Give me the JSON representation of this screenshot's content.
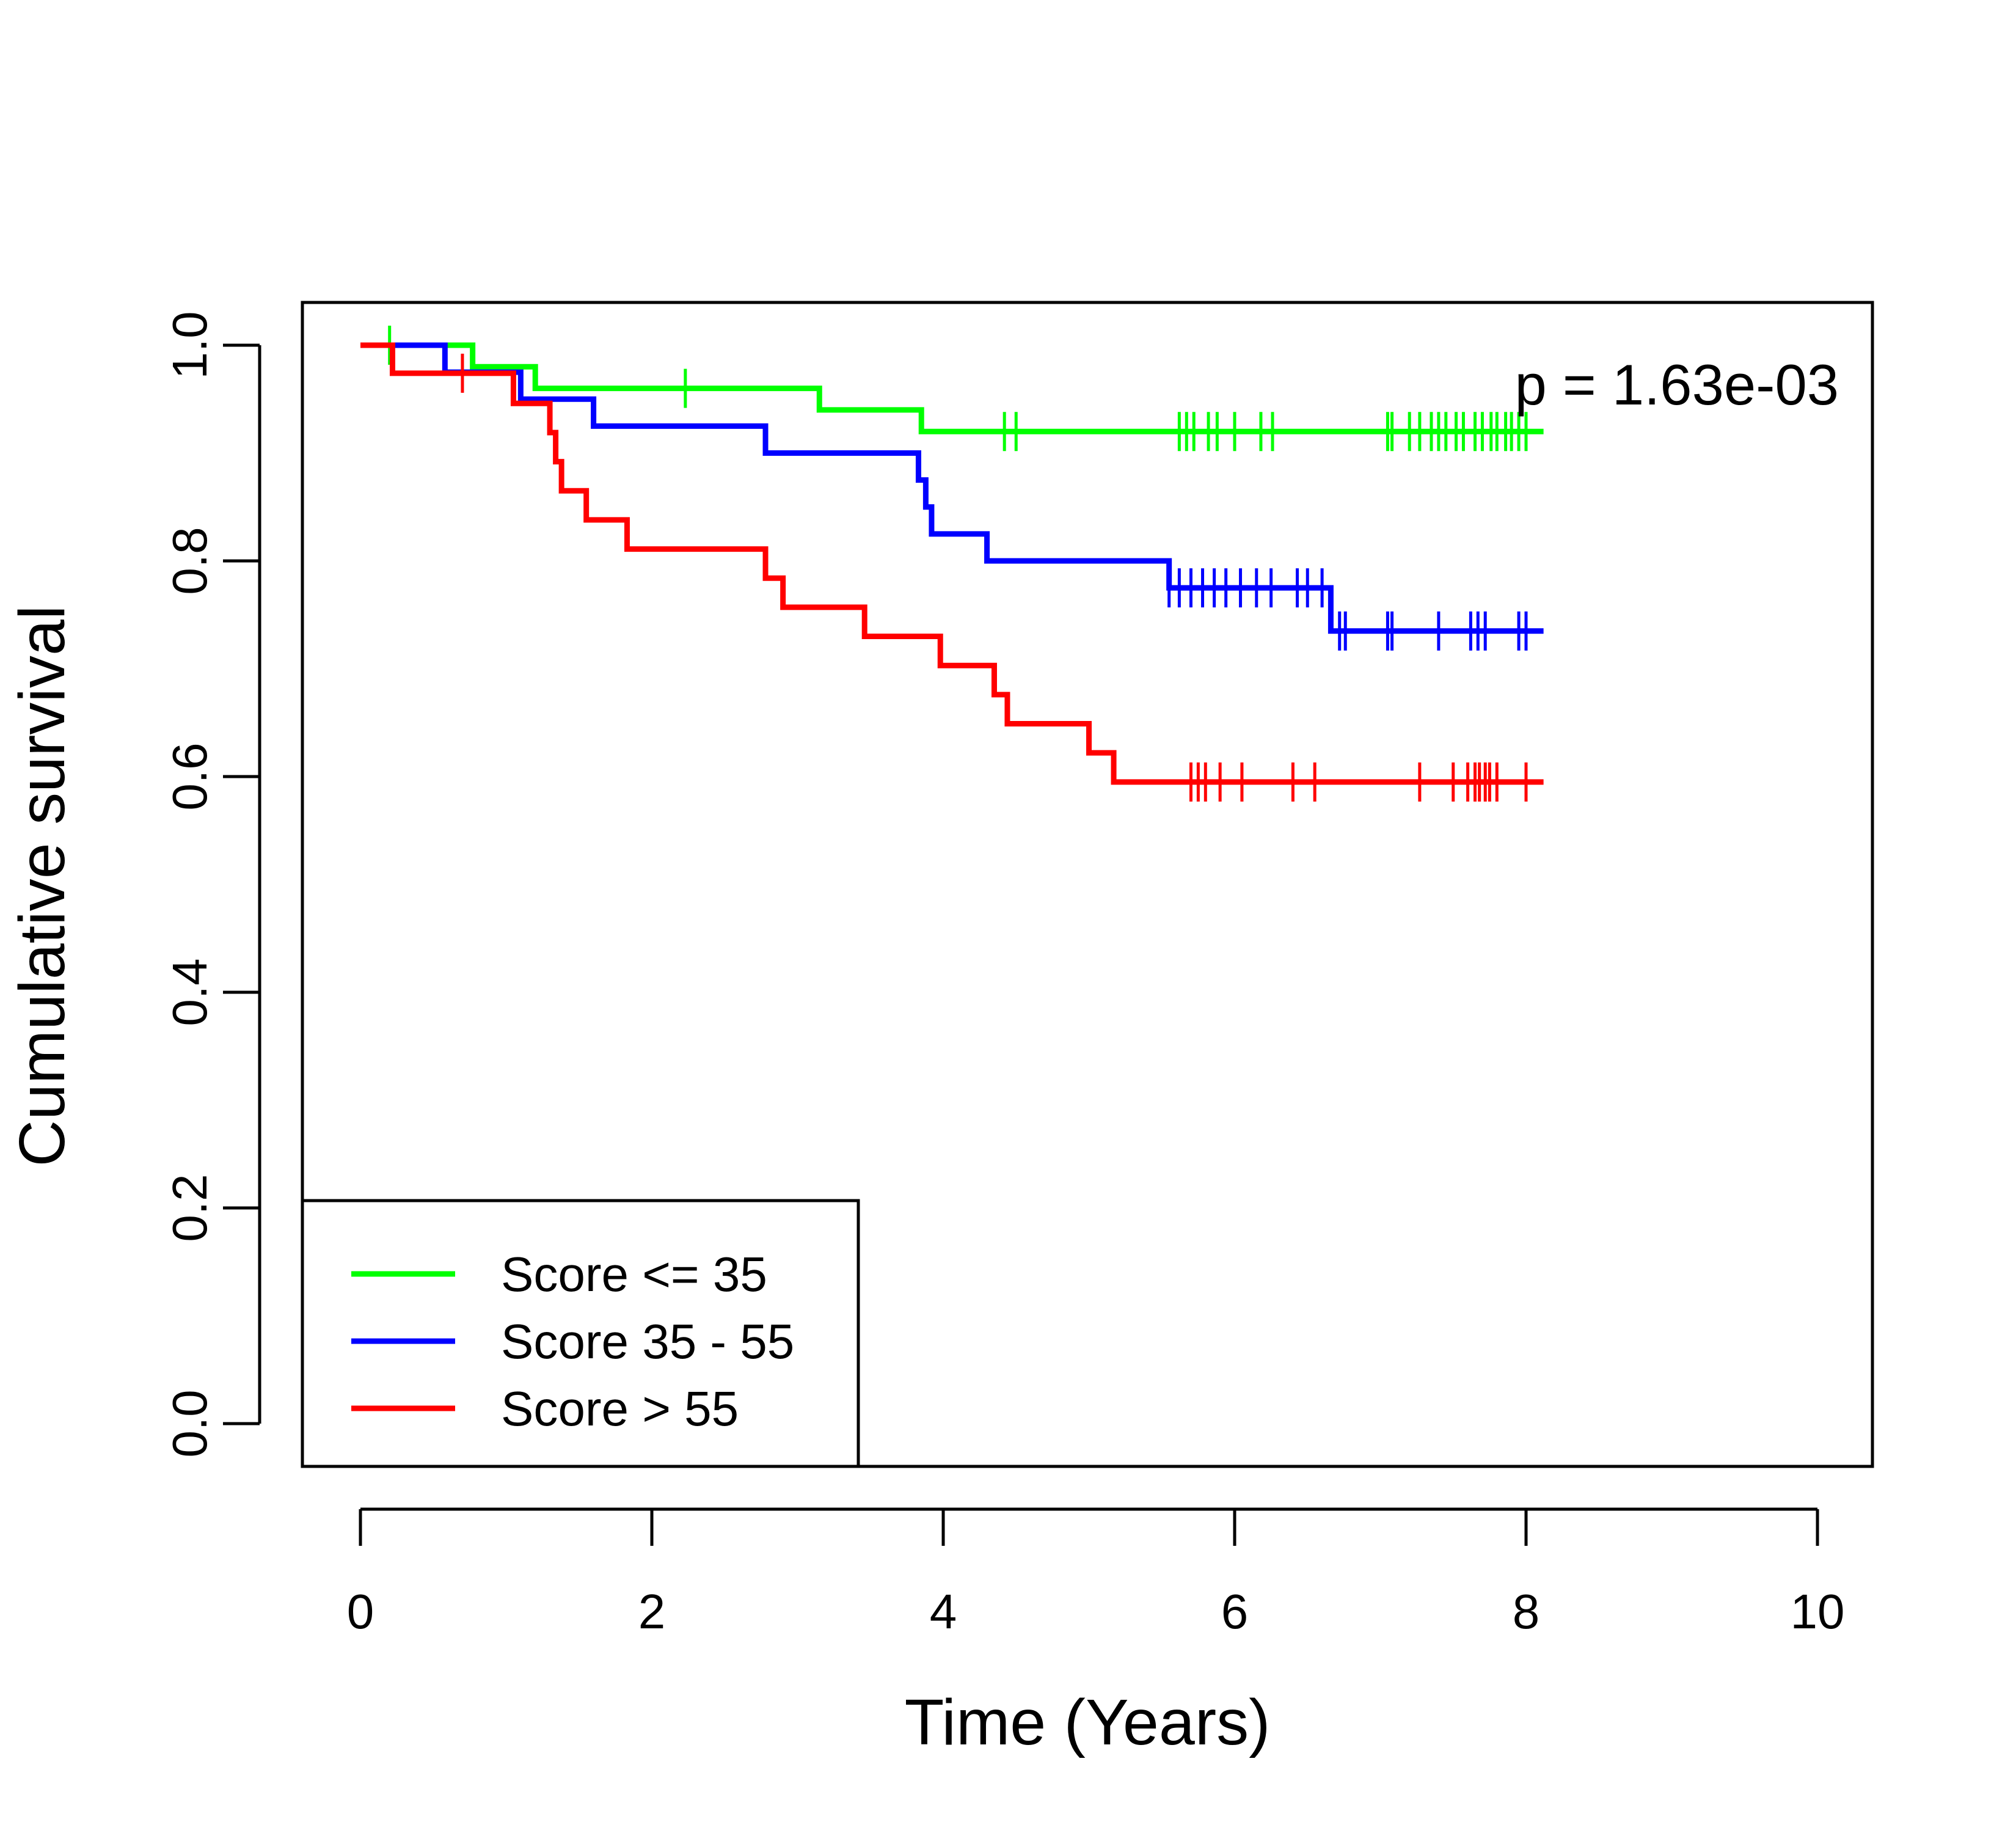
{
  "chart_data": {
    "type": "line",
    "title": "",
    "xlabel": "Time (Years)",
    "ylabel": "Cumulative survival",
    "xlim": [
      0,
      10
    ],
    "ylim": [
      0,
      1
    ],
    "x_ticks": [
      "0",
      "2",
      "4",
      "6",
      "8",
      "10"
    ],
    "y_ticks": [
      "0.0",
      "0.2",
      "0.4",
      "0.6",
      "0.8",
      "1.0"
    ],
    "x_tick_values": [
      0,
      2,
      4,
      6,
      8,
      10
    ],
    "y_tick_values": [
      0,
      0.2,
      0.4,
      0.6,
      0.8,
      1.0
    ],
    "grid": false,
    "legend_position": "bottom-left",
    "annotation": "p = 1.63e-03",
    "series": [
      {
        "name": "Score <= 35",
        "color": "#00ff00",
        "step_x": [
          0,
          0.77,
          1.2,
          3.15,
          3.85,
          8.12
        ],
        "step_y": [
          1.0,
          0.98,
          0.96,
          0.94,
          0.92,
          0.92
        ],
        "censor_x": [
          0.2,
          2.23,
          4.42,
          4.5,
          5.62,
          5.67,
          5.72,
          5.82,
          5.88,
          6.0,
          6.18,
          6.26,
          7.05,
          7.08,
          7.2,
          7.27,
          7.35,
          7.4,
          7.45,
          7.52,
          7.57,
          7.65,
          7.7,
          7.76,
          7.8,
          7.86,
          7.9,
          7.95,
          8.0
        ]
      },
      {
        "name": "Score 35 - 55",
        "color": "#0000ff",
        "step_x": [
          0,
          0.58,
          1.1,
          1.6,
          2.78,
          3.83,
          3.88,
          3.92,
          4.3,
          5.55,
          6.66,
          8.12
        ],
        "step_y": [
          1.0,
          0.975,
          0.95,
          0.925,
          0.9,
          0.875,
          0.85,
          0.825,
          0.8,
          0.775,
          0.735,
          0.735
        ],
        "censor_x": [
          5.55,
          5.62,
          5.7,
          5.78,
          5.86,
          5.94,
          6.04,
          6.15,
          6.25,
          6.43,
          6.5,
          6.6,
          6.72,
          6.76,
          7.05,
          7.08,
          7.4,
          7.62,
          7.67,
          7.72,
          7.95,
          8.0
        ]
      },
      {
        "name": "Score > 55",
        "color": "#ff0000",
        "step_x": [
          0,
          0.22,
          1.05,
          1.3,
          1.34,
          1.38,
          1.55,
          1.83,
          2.78,
          2.9,
          3.46,
          3.98,
          4.35,
          4.44,
          5.0,
          5.17,
          8.12
        ],
        "step_y": [
          1.0,
          0.974,
          0.946,
          0.919,
          0.892,
          0.865,
          0.838,
          0.811,
          0.784,
          0.757,
          0.73,
          0.703,
          0.676,
          0.649,
          0.622,
          0.595,
          0.595
        ],
        "censor_x": [
          0.7,
          5.7,
          5.75,
          5.8,
          5.9,
          6.05,
          6.4,
          6.55,
          7.27,
          7.5,
          7.6,
          7.65,
          7.68,
          7.72,
          7.75,
          7.8,
          8.0
        ]
      }
    ]
  }
}
